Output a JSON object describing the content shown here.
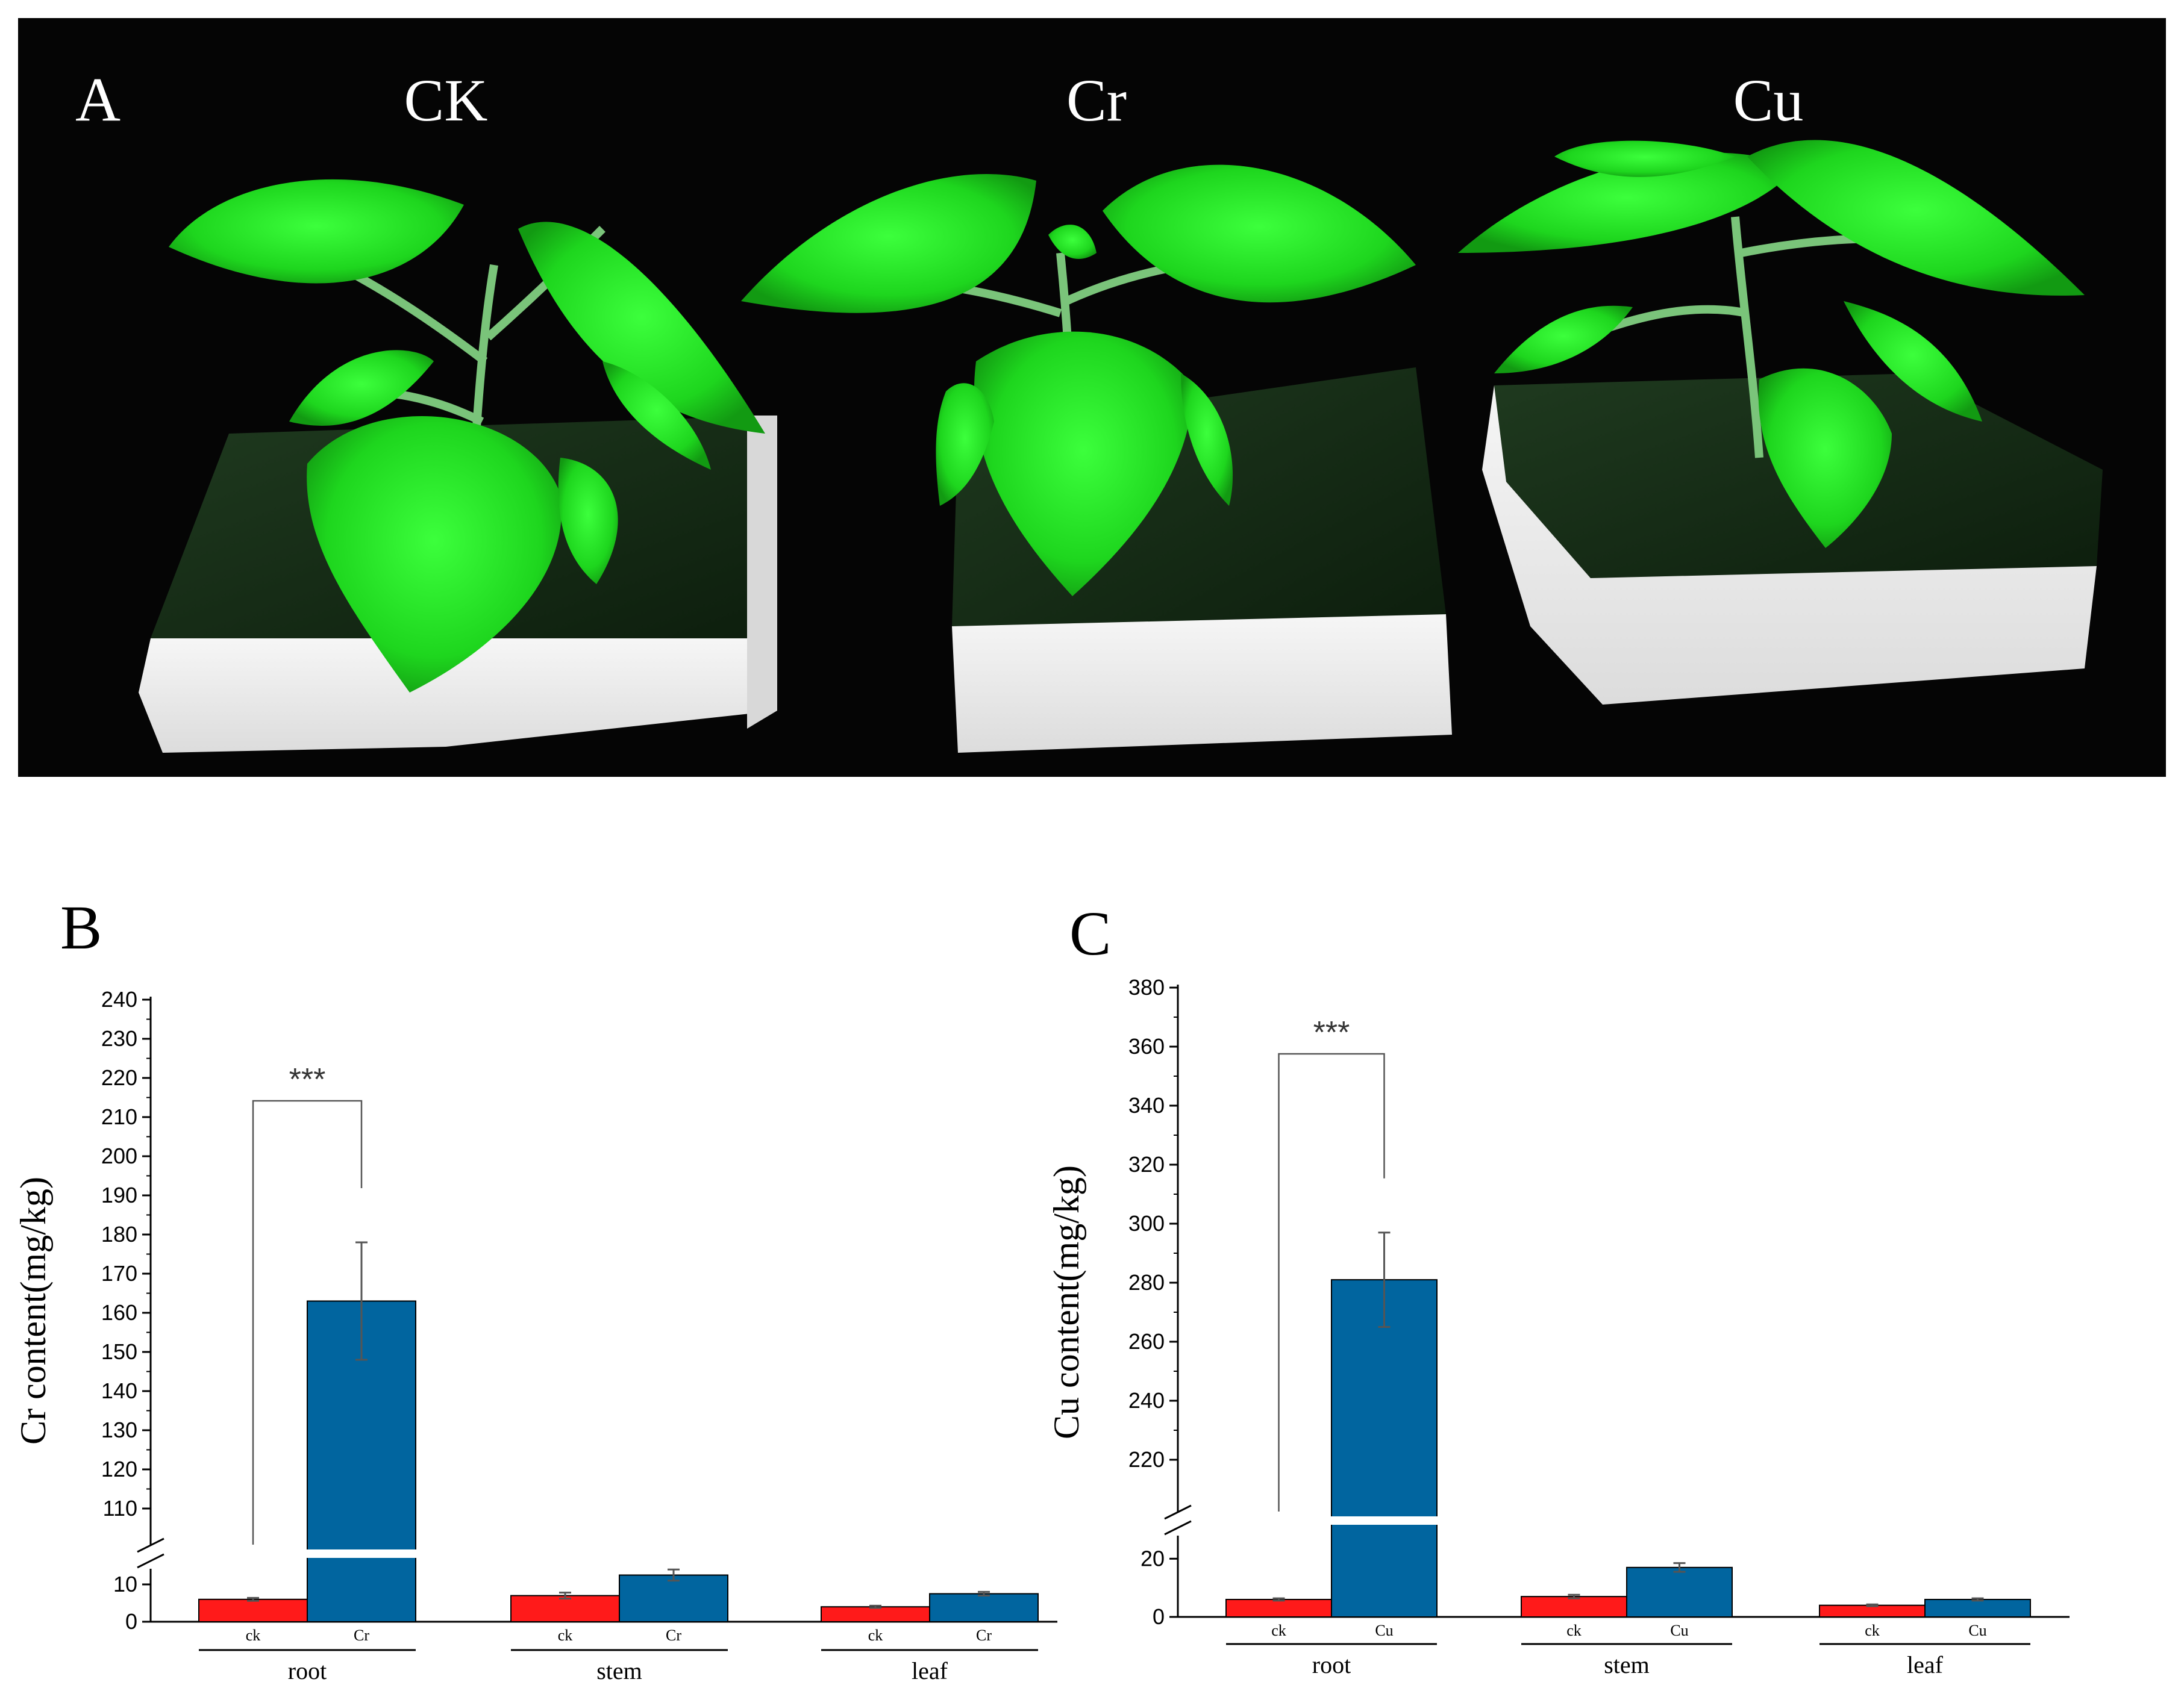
{
  "panels": {
    "a": {
      "letter": "A",
      "labels": [
        "CK",
        "Cr",
        "Cu"
      ]
    },
    "b": {
      "letter": "B"
    },
    "c": {
      "letter": "C"
    }
  },
  "colors": {
    "ck": "#ff1a1a",
    "treatment": "#01659f",
    "photo_bg": "#050505"
  },
  "chart_data": [
    {
      "type": "bar",
      "panel": "B",
      "ylabel": "Cr  content(mg/kg)",
      "broken_axis": true,
      "lower_range": [
        0,
        15
      ],
      "upper_range": [
        100,
        240
      ],
      "lower_ticks": [
        0,
        10
      ],
      "upper_ticks": [
        110,
        120,
        130,
        140,
        150,
        160,
        170,
        180,
        190,
        200,
        210,
        220,
        230,
        240
      ],
      "groups": [
        "root",
        "stem",
        "leaf"
      ],
      "bar_labels": [
        "ck",
        "Cr"
      ],
      "series": [
        {
          "name": "ck",
          "values": [
            6,
            7,
            4
          ],
          "errors": [
            0.4,
            0.8,
            0.3
          ]
        },
        {
          "name": "Cr",
          "values": [
            163,
            12.5,
            7.5
          ],
          "errors": [
            15,
            1.5,
            0.5
          ]
        }
      ],
      "significance": {
        "label": "***",
        "group": "root"
      }
    },
    {
      "type": "bar",
      "panel": "C",
      "ylabel": "Cu  content(mg/kg)",
      "broken_axis": true,
      "lower_range": [
        0,
        30
      ],
      "upper_range": [
        200,
        380
      ],
      "lower_ticks": [
        0,
        20
      ],
      "upper_ticks": [
        220,
        240,
        260,
        280,
        300,
        320,
        340,
        360,
        380
      ],
      "groups": [
        "root",
        "stem",
        "leaf"
      ],
      "bar_labels": [
        "ck",
        "Cu"
      ],
      "series": [
        {
          "name": "ck",
          "values": [
            6,
            7,
            4
          ],
          "errors": [
            0.4,
            0.6,
            0.3
          ]
        },
        {
          "name": "Cu",
          "values": [
            281,
            17,
            6
          ],
          "errors": [
            16,
            1.5,
            0.4
          ]
        }
      ],
      "significance": {
        "label": "***",
        "group": "root"
      }
    }
  ]
}
